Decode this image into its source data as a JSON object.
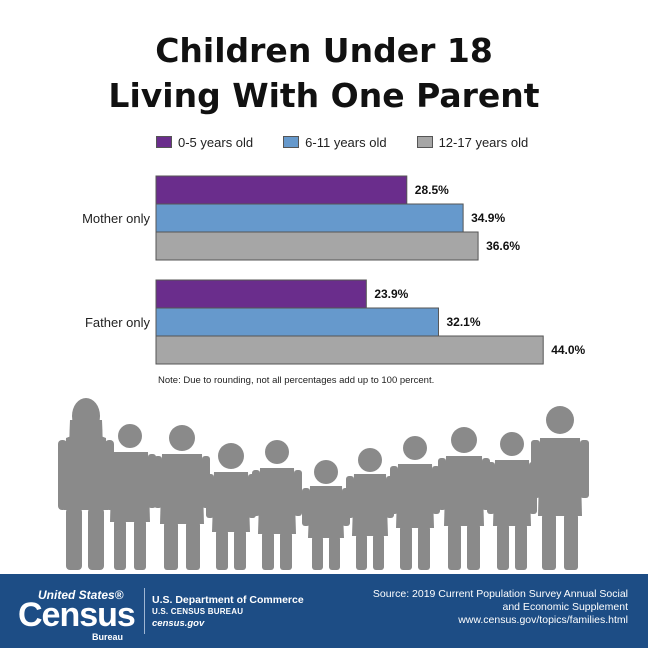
{
  "title": {
    "line1": "Children Under 18",
    "line2": "Living With One Parent"
  },
  "chart_data": {
    "type": "bar",
    "orientation": "horizontal",
    "categories": [
      "Mother only",
      "Father only"
    ],
    "series": [
      {
        "name": "0-5 years old",
        "values": [
          28.5,
          23.9
        ],
        "labels": [
          "28.5%",
          "23.9%"
        ],
        "color": "#6a2d8c"
      },
      {
        "name": "6-11 years old",
        "values": [
          34.9,
          32.1
        ],
        "labels": [
          "34.9%",
          "32.1%"
        ],
        "color": "#6699cc"
      },
      {
        "name": "12-17 years old",
        "values": [
          36.6,
          44.0
        ],
        "labels": [
          "36.6%",
          "44.0%"
        ],
        "color": "#a6a6a6"
      }
    ],
    "xlim": [
      0,
      50
    ],
    "legend": "top",
    "grid": false
  },
  "note": "Note: Due to rounding, not all percentages add up to 100 percent.",
  "footer": {
    "logo_us": "United States®",
    "logo_census": "Census",
    "logo_bureau": "Bureau",
    "department": "U.S. Department of Commerce",
    "bureau": "U.S. CENSUS BUREAU",
    "site": "census.gov",
    "source_line1": "Source: 2019 Current Population Survey Annual Social",
    "source_line2": "and Economic Supplement",
    "source_url": "www.census.gov/topics/families.html",
    "background_color": "#1d4d85"
  },
  "silhouette_color": "#8a8a8a"
}
